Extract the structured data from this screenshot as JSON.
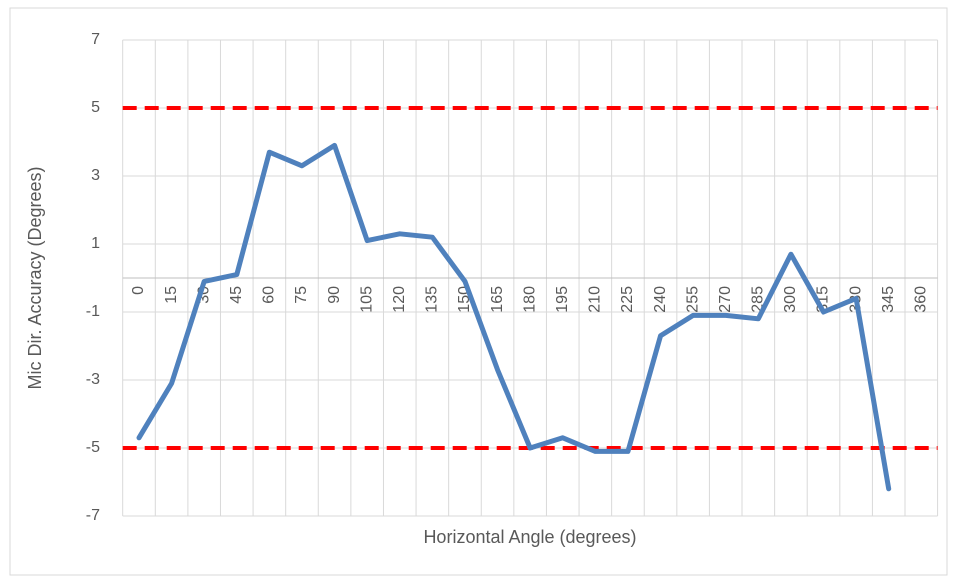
{
  "chart_data": {
    "type": "line",
    "x_label": "Horizontal Angle (degrees)",
    "y_label": "Mic Dir. Accuracy (Degrees)",
    "categories": [
      "0",
      "15",
      "30",
      "45",
      "60",
      "75",
      "90",
      "105",
      "120",
      "135",
      "150",
      "165",
      "180",
      "195",
      "210",
      "225",
      "240",
      "255",
      "270",
      "285",
      "300",
      "315",
      "330",
      "345",
      "360"
    ],
    "series": [
      {
        "color": "#4f81bd",
        "values": [
          -4.7,
          -3.1,
          -0.1,
          0.1,
          3.7,
          3.3,
          3.9,
          1.1,
          1.3,
          1.2,
          -0.1,
          -2.7,
          -5.0,
          -4.7,
          -5.1,
          -5.1,
          -1.7,
          -1.1,
          -1.1,
          -1.2,
          0.7,
          -1.0,
          -0.6,
          -6.2,
          null
        ]
      }
    ],
    "reference_lines": [
      {
        "value": 5,
        "color": "#ff0000"
      },
      {
        "value": -5,
        "color": "#ff0000"
      }
    ],
    "ylim": [
      -7,
      7
    ],
    "yticks": [
      -7,
      -5,
      -3,
      -1,
      1,
      3,
      5,
      7
    ],
    "grid": true
  }
}
